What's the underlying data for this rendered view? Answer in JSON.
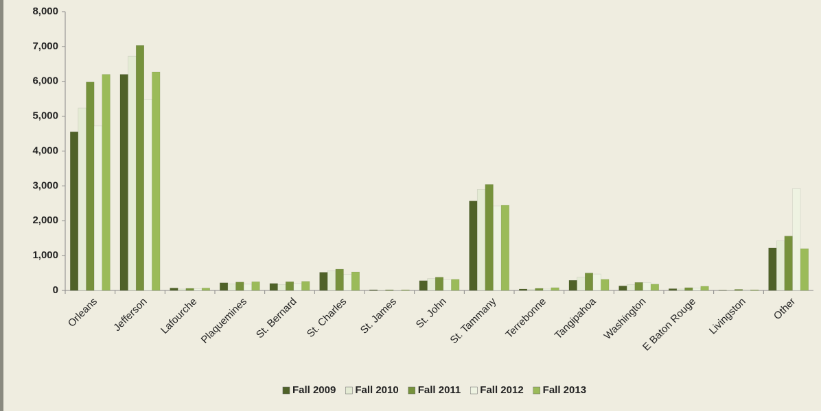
{
  "chart_data": {
    "type": "bar",
    "categories": [
      "Orleans",
      "Jefferson",
      "Lafourche",
      "Plaquemines",
      "St. Bernard",
      "St. Charles",
      "St. James",
      "St. John",
      "St. Tammany",
      "Terrebonne",
      "Tangipahoa",
      "Washington",
      "E Baton Rouge",
      "Livingston",
      "Other"
    ],
    "series": [
      {
        "name": "Fall 2009",
        "color": "#4f6228",
        "values": [
          4550,
          6200,
          70,
          220,
          200,
          520,
          20,
          280,
          2570,
          40,
          290,
          130,
          50,
          10,
          1220
        ]
      },
      {
        "name": "Fall 2010",
        "color": "#e4ebd4",
        "values": [
          5230,
          6720,
          40,
          190,
          170,
          570,
          10,
          340,
          2900,
          30,
          380,
          170,
          40,
          10,
          1420
        ]
      },
      {
        "name": "Fall 2011",
        "color": "#76923c",
        "values": [
          5980,
          7030,
          60,
          240,
          250,
          610,
          20,
          380,
          3040,
          60,
          500,
          230,
          80,
          30,
          1560
        ]
      },
      {
        "name": "Fall 2012",
        "color": "#eef3e2",
        "values": [
          4720,
          5480,
          50,
          180,
          200,
          460,
          10,
          300,
          2420,
          40,
          470,
          230,
          70,
          20,
          2920
        ]
      },
      {
        "name": "Fall 2013",
        "color": "#9bbb59",
        "values": [
          6200,
          6270,
          70,
          250,
          260,
          530,
          20,
          320,
          2450,
          80,
          320,
          180,
          120,
          20,
          1200
        ]
      }
    ],
    "ylim": [
      0,
      8000
    ],
    "yticks": [
      0,
      {
        "value": 1000,
        "label": "1,000"
      },
      {
        "value": 2000,
        "label": "2,000"
      },
      {
        "value": 3000,
        "label": "3,000"
      },
      {
        "value": 4000,
        "label": "4,000"
      },
      {
        "value": 5000,
        "label": "5,000"
      },
      {
        "value": 6000,
        "label": "6,000"
      },
      {
        "value": 7000,
        "label": "7,000"
      },
      {
        "value": 8000,
        "label": "8,000"
      }
    ],
    "grid": false,
    "legend": "bottom"
  }
}
